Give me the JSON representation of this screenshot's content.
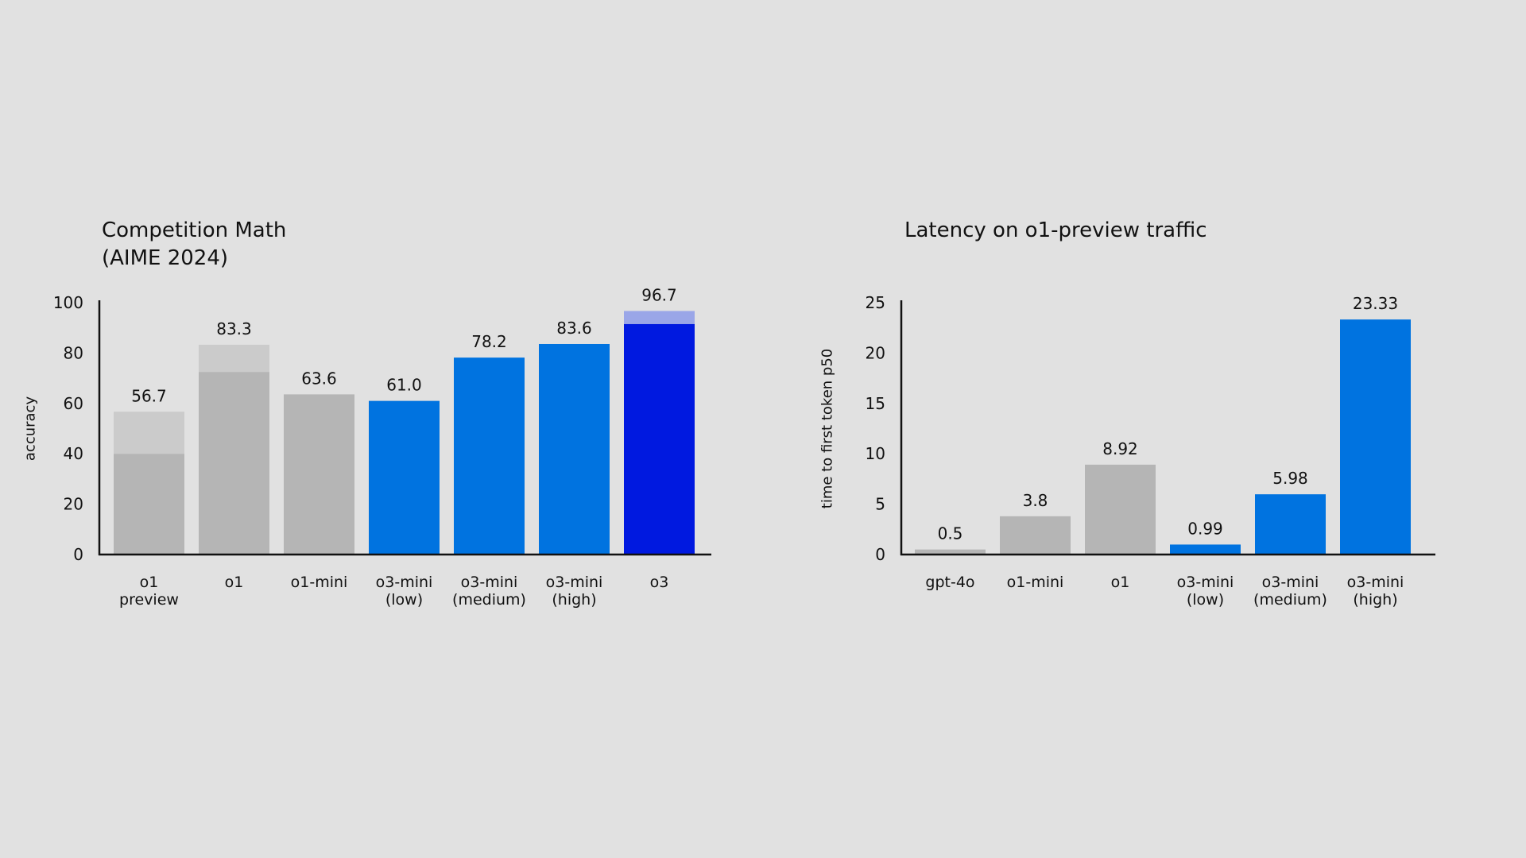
{
  "colors": {
    "background": "#e1e1e1",
    "gray": "#b5b5b5",
    "gray_light": "#cbcbcb",
    "blue": "#0073e0",
    "deep_blue": "#0019e0",
    "deep_blue_light": "#9aa6e8",
    "axis": "#111111"
  },
  "chart_data": [
    {
      "type": "bar",
      "title_lines": [
        "Competition Math",
        "(AIME 2024)"
      ],
      "xlabel": "",
      "ylabel": "accuracy",
      "ylim": [
        0,
        100
      ],
      "yticks": [
        "0",
        "20",
        "40",
        "60",
        "80",
        "100"
      ],
      "grid": false,
      "categories": [
        [
          "o1",
          "preview"
        ],
        [
          "o1"
        ],
        [
          "o1-mini"
        ],
        [
          "o3-mini",
          "(low)"
        ],
        [
          "o3-mini",
          "(medium)"
        ],
        [
          "o3-mini",
          "(high)"
        ],
        [
          "o3"
        ]
      ],
      "values": [
        56.7,
        83.3,
        63.6,
        61.0,
        78.2,
        83.6,
        96.7
      ],
      "value_labels": [
        "56.7",
        "83.3",
        "63.6",
        "61.0",
        "78.2",
        "83.6",
        "96.7"
      ],
      "solid_portion": [
        40,
        72.5,
        63.6,
        61.0,
        78.2,
        83.6,
        91.5
      ],
      "bar_colors": [
        "gray",
        "gray",
        "gray",
        "blue",
        "blue",
        "blue",
        "deep_blue"
      ],
      "overlay_colors": [
        "gray_light",
        "gray_light",
        "gray_light",
        "blue",
        "blue",
        "blue",
        "deep_blue_light"
      ]
    },
    {
      "type": "bar",
      "title_lines": [
        "Latency on o1-preview traffic"
      ],
      "xlabel": "",
      "ylabel": "time to first token p50",
      "ylim": [
        0,
        25
      ],
      "yticks": [
        "0",
        "5",
        "10",
        "15",
        "20",
        "25"
      ],
      "grid": false,
      "categories": [
        [
          "gpt-4o"
        ],
        [
          "o1-mini"
        ],
        [
          "o1"
        ],
        [
          "o3-mini",
          "(low)"
        ],
        [
          "o3-mini",
          "(medium)"
        ],
        [
          "o3-mini",
          "(high)"
        ]
      ],
      "values": [
        0.5,
        3.8,
        8.92,
        0.99,
        5.98,
        23.33
      ],
      "value_labels": [
        "0.5",
        "3.8",
        "8.92",
        "0.99",
        "5.98",
        "23.33"
      ],
      "bar_colors": [
        "gray",
        "gray",
        "gray",
        "blue",
        "blue",
        "blue"
      ]
    }
  ]
}
